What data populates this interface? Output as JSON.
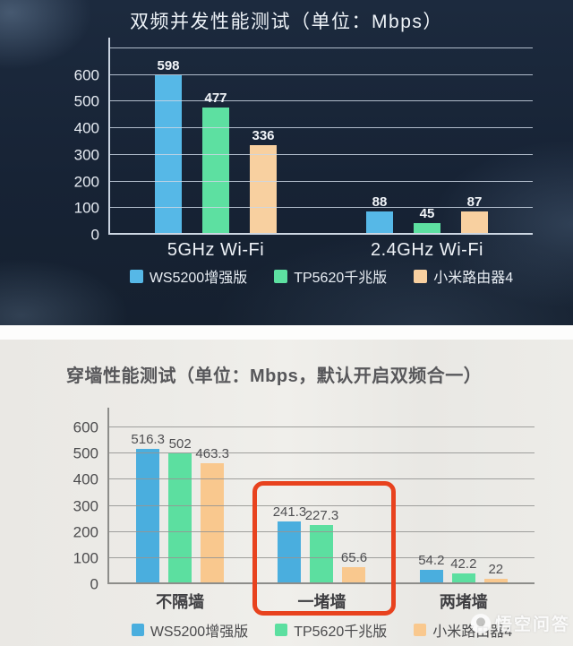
{
  "chart_data": [
    {
      "type": "bar",
      "title": "双频并发性能测试（单位：Mbps）",
      "categories": [
        "5GHz Wi-Fi",
        "2.4GHz Wi-Fi"
      ],
      "series": [
        {
          "name": "WS5200增强版",
          "color": "#56b8e7",
          "values": [
            598,
            88
          ]
        },
        {
          "name": "TP5620千兆版",
          "color": "#5de0a1",
          "values": [
            477,
            45
          ]
        },
        {
          "name": "小米路由器4",
          "color": "#f8d0a0",
          "values": [
            336,
            87
          ]
        }
      ],
      "ylim": [
        0,
        700
      ],
      "yticks": [
        0,
        100,
        200,
        300,
        400,
        500,
        600
      ],
      "grid": true,
      "value_labels": true,
      "legend_position": "bottom",
      "theme": "dark"
    },
    {
      "type": "bar",
      "title": "穿墙性能测试（单位：Mbps，默认开启双频合一）",
      "categories": [
        "不隔墙",
        "一堵墙",
        "两堵墙"
      ],
      "series": [
        {
          "name": "WS5200增强版",
          "color": "#4aaede",
          "values": [
            516.3,
            241.3,
            54.2
          ]
        },
        {
          "name": "TP5620千兆版",
          "color": "#5cdfa0",
          "values": [
            502,
            227.3,
            42.2
          ]
        },
        {
          "name": "小米路由器4",
          "color": "#f9c88e",
          "values": [
            463.3,
            65.6,
            22
          ]
        }
      ],
      "ylim": [
        0,
        600
      ],
      "yticks": [
        0,
        100,
        200,
        300,
        400,
        500,
        600
      ],
      "grid": true,
      "value_labels": true,
      "legend_position": "bottom",
      "theme": "light",
      "highlight": {
        "category": "一堵墙",
        "box_color": "#e8421e"
      }
    }
  ],
  "watermark": {
    "text": "悟空问答",
    "icon": "wukong-logo"
  }
}
